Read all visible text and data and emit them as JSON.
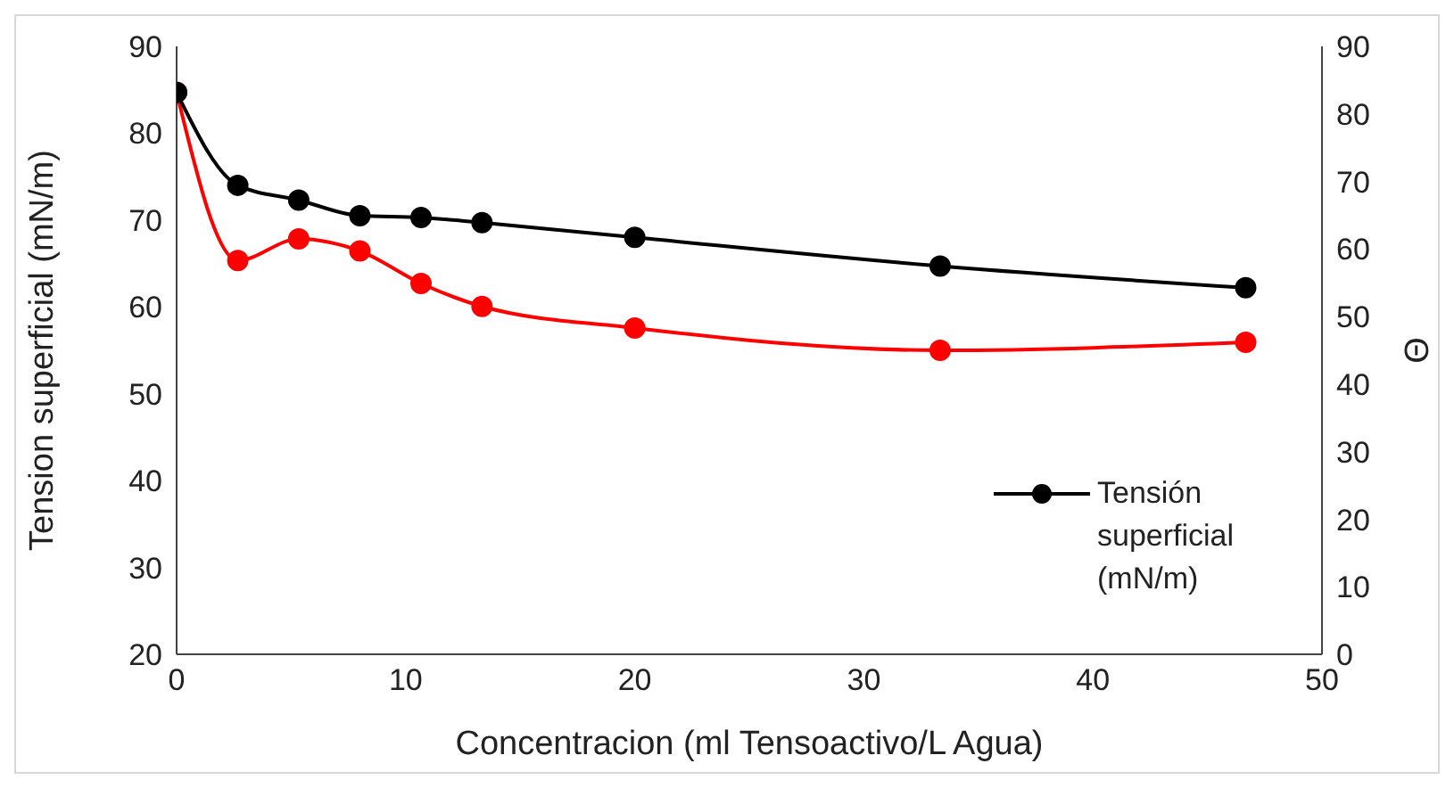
{
  "chart_data": {
    "type": "line",
    "xlabel": "Concentracion (ml Tensoactivo/L Agua)",
    "ylabel": "Tension superficial (mN/m)",
    "y2label": "Θ",
    "x": [
      0,
      2.67,
      5.33,
      8,
      10.67,
      13.33,
      20,
      33.33,
      46.67
    ],
    "series": [
      {
        "name": "Tensión superficial (mN/m)",
        "color": "#000000",
        "values": [
          84.7,
          74.0,
          72.3,
          70.5,
          70.3,
          69.7,
          68.0,
          64.7,
          62.2
        ]
      },
      {
        "color": "#ff0000",
        "axis": "y2",
        "values": [
          83.2,
          58.3,
          61.5,
          59.7,
          54.9,
          51.5,
          48.3,
          45.0,
          46.2
        ]
      }
    ],
    "xlim": [
      0,
      50
    ],
    "xticks": [
      0,
      10,
      20,
      30,
      40,
      50
    ],
    "ylim": [
      20,
      90
    ],
    "yticks": [
      20,
      30,
      40,
      50,
      60,
      70,
      80,
      90
    ],
    "y2lim": [
      0,
      90
    ],
    "y2ticks": [
      0,
      10,
      20,
      30,
      40,
      50,
      60,
      70,
      80,
      90
    ],
    "marker": "circle",
    "line_style": "solid",
    "grid": false,
    "legend": "bottom right"
  }
}
